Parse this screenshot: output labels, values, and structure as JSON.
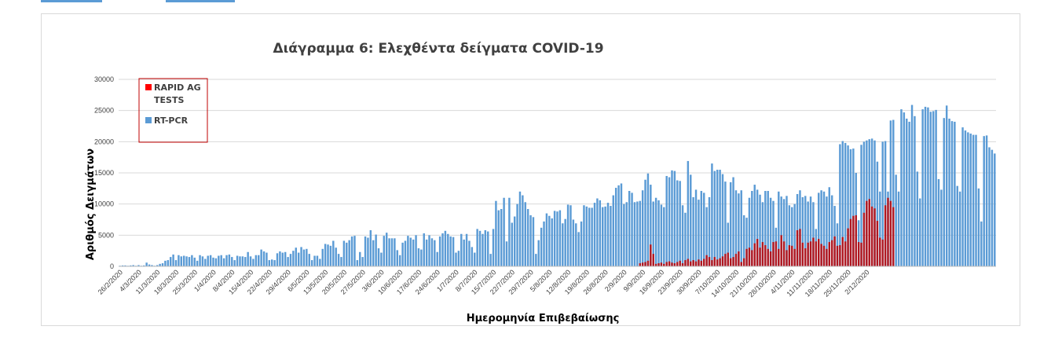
{
  "colors": {
    "rtpcr": "#5b9bd5",
    "rapid": "#c00000",
    "rapid_legend": "#ff0000",
    "legend_border": "#c00000",
    "grid": "#d9d9d9",
    "tab_accent": "#5b9bd5"
  },
  "chart_data": {
    "type": "bar",
    "stacked": false,
    "title": "Διάγραμμα 6: Ελεχθέντα δείγματα COVID-19",
    "xlabel": "Ημερομηνία Επιβεβαίωσης",
    "ylabel": "Αριθμός Δειγμάτων",
    "ylim": [
      0,
      30000
    ],
    "yticks": [
      "0",
      "5000",
      "10000",
      "15000",
      "20000",
      "25000",
      "30000"
    ],
    "grid": true,
    "legend_position": "top-left",
    "x_start": "26/2/2020",
    "x_tick_labels": [
      "26/2/2020",
      "4/3/2020",
      "11/3/2020",
      "18/3/2020",
      "25/3/2020",
      "1/4/2020",
      "8/4/2020",
      "15/4/2020",
      "22/4/2020",
      "29/4/2020",
      "6/5/2020",
      "13/5/2020",
      "20/5/2020",
      "27/5/2020",
      "3/6/2020",
      "10/6/2020",
      "17/6/2020",
      "24/6/2020",
      "1/7/2020",
      "8/7/2020",
      "15/7/2020",
      "22/7/2020",
      "29/7/2020",
      "5/8/2020",
      "12/8/2020",
      "19/8/2020",
      "26/8/2020",
      "2/9/2020",
      "9/9/2020",
      "16/9/2020",
      "23/9/2020",
      "30/9/2020",
      "7/10/2020",
      "14/10/2020",
      "21/10/2020",
      "28/10/2020",
      "4/11/2020",
      "11/11/2020",
      "18/11/2020",
      "25/11/2020",
      "2/12/2020"
    ],
    "series": [
      {
        "name": "RAPID AG TESTS",
        "values": [
          0,
          0,
          0,
          0,
          0,
          0,
          0,
          0,
          0,
          0,
          0,
          0,
          0,
          0,
          0,
          0,
          0,
          0,
          0,
          0,
          0,
          0,
          0,
          0,
          0,
          0,
          0,
          0,
          0,
          0,
          0,
          0,
          0,
          0,
          0,
          0,
          0,
          0,
          0,
          0,
          0,
          0,
          0,
          0,
          0,
          0,
          0,
          0,
          0,
          0,
          0,
          0,
          0,
          0,
          0,
          0,
          0,
          0,
          0,
          0,
          0,
          0,
          0,
          0,
          0,
          0,
          0,
          0,
          0,
          0,
          0,
          0,
          0,
          0,
          0,
          0,
          0,
          0,
          0,
          0,
          0,
          0,
          0,
          0,
          0,
          0,
          0,
          0,
          0,
          0,
          0,
          0,
          0,
          0,
          0,
          0,
          0,
          0,
          0,
          0,
          0,
          0,
          0,
          0,
          0,
          0,
          0,
          0,
          0,
          0,
          0,
          0,
          0,
          0,
          0,
          0,
          0,
          0,
          0,
          0,
          0,
          0,
          0,
          0,
          0,
          0,
          0,
          0,
          0,
          0,
          0,
          0,
          0,
          0,
          0,
          0,
          0,
          0,
          0,
          0,
          0,
          0,
          0,
          0,
          0,
          0,
          0,
          0,
          0,
          0,
          0,
          0,
          0,
          0,
          0,
          0,
          0,
          0,
          0,
          0,
          0,
          0,
          0,
          0,
          0,
          0,
          0,
          0,
          0,
          0,
          0,
          0,
          0,
          0,
          0,
          0,
          0,
          0,
          0,
          0,
          0,
          0,
          0,
          0,
          0,
          0,
          0,
          0,
          0,
          0,
          0,
          0,
          0,
          0,
          0,
          500,
          600,
          700,
          900,
          3500,
          2000,
          400,
          500,
          600,
          400,
          700,
          800,
          600,
          500,
          700,
          900,
          500,
          1000,
          1200,
          800,
          1000,
          800,
          1100,
          900,
          1200,
          1800,
          1500,
          1000,
          1500,
          1100,
          1300,
          1600,
          2000,
          2200,
          1300,
          1500,
          2000,
          2400,
          700,
          1300,
          2800,
          3000,
          2600,
          3700,
          4400,
          3000,
          3900,
          3400,
          2800,
          2400,
          3900,
          4000,
          2800,
          5000,
          4000,
          2600,
          3400,
          3300,
          2800,
          5800,
          6000,
          3800,
          2900,
          3800,
          4000,
          4600,
          4000,
          4400,
          3600,
          3300,
          2800,
          3900,
          4200,
          4800,
          3300,
          3400,
          4700,
          4000,
          6100,
          7600,
          8100,
          8200,
          3900,
          3800,
          8600,
          10500,
          10800,
          9600,
          9300,
          7300,
          4600,
          4300,
          9800,
          11000,
          10500,
          9500
        ]
      },
      {
        "name": "RT-PCR",
        "values": [
          100,
          150,
          150,
          100,
          150,
          200,
          100,
          200,
          100,
          150,
          600,
          300,
          200,
          100,
          200,
          400,
          500,
          900,
          1000,
          1500,
          1900,
          1000,
          1800,
          1600,
          1700,
          1600,
          1500,
          1800,
          1400,
          900,
          1800,
          1600,
          1200,
          1700,
          1800,
          1400,
          1300,
          1700,
          1800,
          1300,
          1800,
          1900,
          1500,
          1000,
          1700,
          1600,
          1600,
          1500,
          2300,
          1600,
          1200,
          1800,
          1800,
          2700,
          2400,
          2200,
          1000,
          1100,
          1000,
          2100,
          2400,
          2200,
          2300,
          1500,
          2000,
          2500,
          3000,
          2200,
          3100,
          2700,
          2800,
          2000,
          1000,
          1700,
          1700,
          1200,
          2800,
          3600,
          3500,
          3300,
          4100,
          3000,
          2000,
          1500,
          4100,
          3800,
          4200,
          4800,
          4900,
          1000,
          2300,
          1500,
          4800,
          4600,
          5800,
          4200,
          5100,
          2900,
          2200,
          4900,
          5400,
          4500,
          4500,
          4500,
          2600,
          1800,
          3800,
          4100,
          4900,
          4600,
          4300,
          5000,
          2900,
          2700,
          5300,
          4300,
          5000,
          4500,
          4200,
          2300,
          4800,
          5300,
          5700,
          5200,
          4800,
          4700,
          2200,
          2500,
          5200,
          4300,
          5200,
          4100,
          3100,
          2200,
          6000,
          5700,
          5200,
          5800,
          5600,
          2000,
          6000,
          10500,
          9000,
          9200,
          11000,
          4000,
          11000,
          7000,
          8000,
          10000,
          12000,
          11400,
          10300,
          9200,
          8200,
          7900,
          2000,
          4200,
          6200,
          7200,
          8500,
          8100,
          7700,
          8900,
          8800,
          9000,
          6900,
          7600,
          9900,
          9800,
          7500,
          6900,
          5500,
          7200,
          9800,
          9600,
          9400,
          9400,
          10200,
          10900,
          10600,
          9500,
          9600,
          10200,
          9700,
          11400,
          12600,
          13000,
          13300,
          10000,
          10300,
          12100,
          11800,
          10300,
          10400,
          10500,
          12200,
          13900,
          14900,
          13100,
          10400,
          11000,
          10600,
          9900,
          9500,
          14500,
          14300,
          15400,
          15300,
          13800,
          13700,
          9800,
          8600,
          16900,
          14700,
          11100,
          12300,
          10700,
          12100,
          11800,
          9500,
          11100,
          16500,
          15300,
          15500,
          15500,
          14800,
          13600,
          7000,
          13500,
          14300,
          12200,
          11700,
          12200,
          8200,
          7800,
          11000,
          12100,
          13100,
          12300,
          11500,
          10300,
          12100,
          12100,
          11000,
          10500,
          6200,
          12000,
          11200,
          10800,
          11300,
          9800,
          9500,
          10000,
          11600,
          12200,
          11100,
          11300,
          10400,
          11200,
          10300,
          6000,
          11800,
          12200,
          12000,
          11200,
          12700,
          11400,
          9700,
          6900,
          19600,
          20100,
          19800,
          19400,
          18800,
          18900,
          15000,
          7400,
          19500,
          20000,
          20200,
          20400,
          20500,
          20200,
          16800,
          12000,
          20000,
          20100,
          12000,
          23400,
          23500,
          14700,
          12000,
          25200,
          24700,
          23700,
          23200,
          25900,
          24100,
          15200,
          10900,
          25200,
          25600,
          25500,
          24800,
          24900,
          25100,
          14000,
          12300,
          23800,
          25800,
          23700,
          23300,
          23200,
          12900,
          12000,
          22300,
          21800,
          21500,
          21300,
          21100,
          21100,
          12500,
          7200,
          20900,
          21000,
          19100,
          18700,
          18100
        ]
      }
    ]
  }
}
